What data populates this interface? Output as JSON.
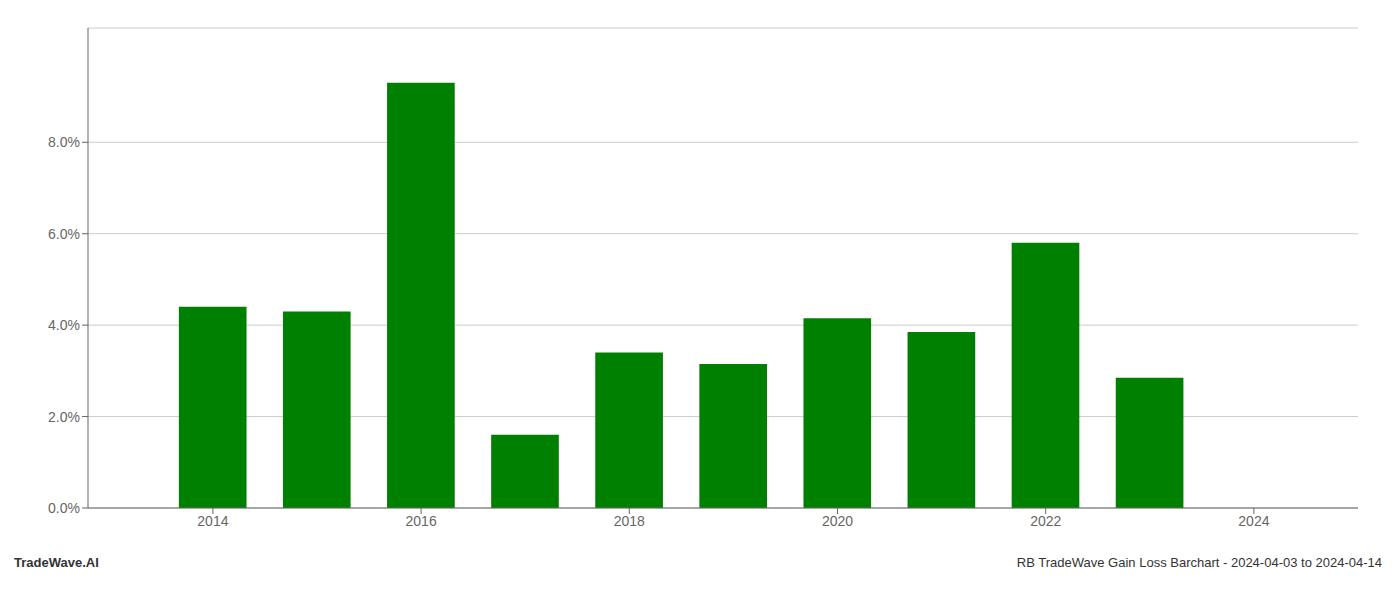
{
  "chart_data": {
    "type": "bar",
    "x": [
      2014,
      2015,
      2016,
      2017,
      2018,
      2019,
      2020,
      2021,
      2022,
      2023
    ],
    "values": [
      0.044,
      0.043,
      0.093,
      0.016,
      0.034,
      0.0315,
      0.0415,
      0.0385,
      0.058,
      0.0285
    ],
    "color": "#008000",
    "xlim": [
      2012.8,
      2025.0
    ],
    "xticks": [
      2014,
      2016,
      2018,
      2020,
      2022,
      2024
    ],
    "ylim": [
      0,
      0.105
    ],
    "yticks": [
      {
        "value": 0.0,
        "label": "0.0%"
      },
      {
        "value": 0.02,
        "label": "2.0%"
      },
      {
        "value": 0.04,
        "label": "4.0%"
      },
      {
        "value": 0.06,
        "label": "6.0%"
      },
      {
        "value": 0.08,
        "label": "8.0%"
      }
    ],
    "grid": true,
    "annotations": [
      "TradeWave.AI",
      "RB TradeWave Gain Loss Barchart - 2024-04-03 to 2024-04-14"
    ]
  }
}
